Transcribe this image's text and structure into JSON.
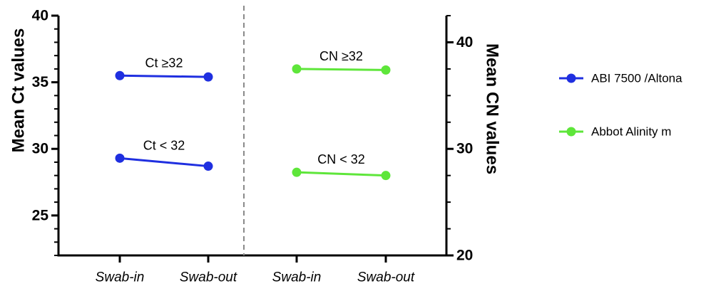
{
  "chart_data": {
    "type": "line",
    "categories": [
      "Swab-in",
      "Swab-out",
      "Swab-in",
      "Swab-out"
    ],
    "left_axis": {
      "label": "Mean Ct values",
      "ylim": [
        22,
        40
      ],
      "ticks": [
        25,
        30,
        35,
        40
      ]
    },
    "right_axis": {
      "label": "Mean CN values",
      "ylim": [
        20,
        42.5
      ],
      "ticks": [
        20,
        30,
        40
      ]
    },
    "groups": [
      {
        "label": "Ct ≥32",
        "series": "ABI 7500 /Altona",
        "axis": "left",
        "x": [
          "Swab-in",
          "Swab-out"
        ],
        "values": [
          35.5,
          35.4
        ]
      },
      {
        "label": "Ct < 32",
        "series": "ABI 7500 /Altona",
        "axis": "left",
        "x": [
          "Swab-in",
          "Swab-out"
        ],
        "values": [
          29.3,
          28.7
        ]
      },
      {
        "label": "CN ≥32",
        "series": "Abbot Alinity m",
        "axis": "right",
        "x": [
          "Swab-in",
          "Swab-out"
        ],
        "values": [
          37.5,
          37.4
        ]
      },
      {
        "label": "CN < 32",
        "series": "Abbot Alinity m",
        "axis": "right",
        "x": [
          "Swab-in",
          "Swab-out"
        ],
        "values": [
          27.8,
          27.5
        ]
      }
    ],
    "legend": [
      {
        "name": "ABI 7500 /Altona",
        "color": "#1f2fe0"
      },
      {
        "name": "Abbot Alinity m",
        "color": "#5ee63a"
      }
    ],
    "legend_position": "right",
    "grid": false
  }
}
